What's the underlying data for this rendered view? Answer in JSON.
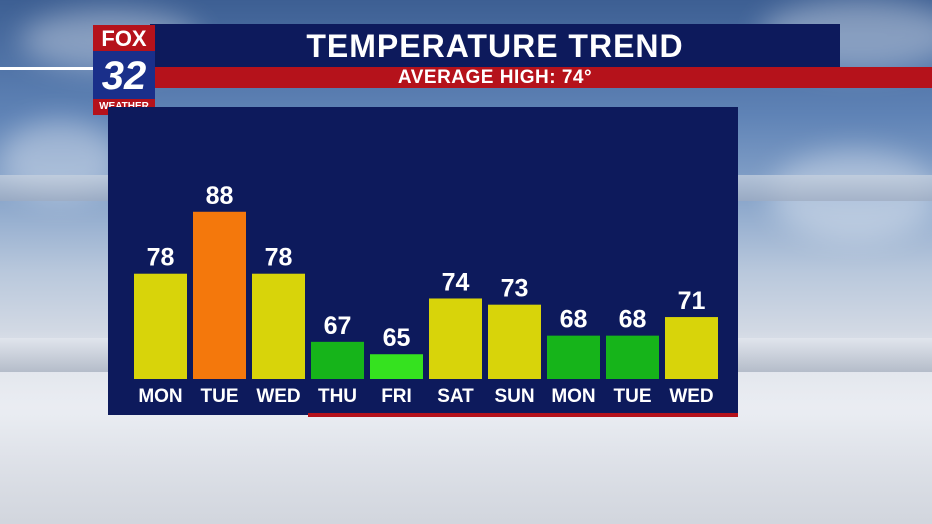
{
  "header": {
    "title": "TEMPERATURE TREND",
    "subtitle": "AVERAGE HIGH: 74°"
  },
  "logo": {
    "top": "FOX",
    "number": "32",
    "bottom": "WEATHER"
  },
  "colors": {
    "panel": "#0d1a5c",
    "accent_red": "#b5121b",
    "yellow": "#d8d40a",
    "orange": "#f4780c",
    "green": "#16b41a",
    "bright_green": "#35e21f"
  },
  "chart_data": {
    "type": "bar",
    "title": "TEMPERATURE TREND",
    "subtitle": "AVERAGE HIGH: 74°",
    "categories": [
      "MON",
      "TUE",
      "WED",
      "THU",
      "FRI",
      "SAT",
      "SUN",
      "MON",
      "TUE",
      "WED"
    ],
    "values": [
      78,
      88,
      78,
      67,
      65,
      74,
      73,
      68,
      68,
      71
    ],
    "bar_colors": [
      "#d8d40a",
      "#f4780c",
      "#d8d40a",
      "#16b41a",
      "#35e21f",
      "#d8d40a",
      "#d8d40a",
      "#16b41a",
      "#16b41a",
      "#d8d40a"
    ],
    "ylim": [
      61,
      92
    ],
    "grid": false,
    "legend": "none",
    "xlabel": "",
    "ylabel": ""
  }
}
